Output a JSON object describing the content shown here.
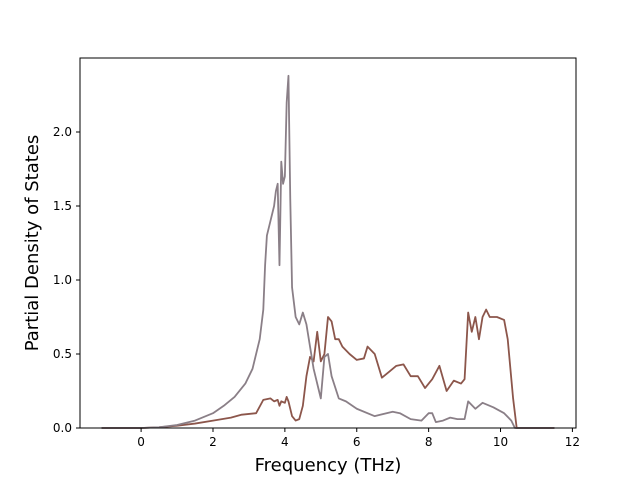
{
  "chart_data": {
    "type": "line",
    "title": "",
    "xlabel": "Frequency (THz)",
    "ylabel": "Partial Density of States",
    "xlim": [
      -1.7,
      12.1
    ],
    "ylim": [
      0,
      2.5
    ],
    "xticks": [
      0,
      2,
      4,
      6,
      8,
      10,
      12
    ],
    "xtick_labels": [
      "0",
      "2",
      "4",
      "6",
      "8",
      "10",
      "12"
    ],
    "yticks": [
      0,
      0.5,
      1.0,
      1.5,
      2.0
    ],
    "ytick_labels": [
      "0.0",
      "0.5",
      "1.0",
      "1.5",
      "2.0"
    ],
    "grid": false,
    "legend": "none",
    "series": [
      {
        "color": "#8c564b",
        "x": [
          -1.1,
          0.0,
          0.5,
          1.0,
          1.5,
          2.0,
          2.5,
          2.8,
          3.2,
          3.4,
          3.6,
          3.7,
          3.8,
          3.85,
          3.9,
          4.0,
          4.05,
          4.1,
          4.2,
          4.3,
          4.4,
          4.5,
          4.6,
          4.7,
          4.8,
          4.9,
          5.0,
          5.1,
          5.2,
          5.3,
          5.4,
          5.5,
          5.6,
          5.8,
          6.0,
          6.2,
          6.3,
          6.5,
          6.7,
          6.9,
          7.1,
          7.3,
          7.5,
          7.7,
          7.9,
          8.1,
          8.3,
          8.5,
          8.7,
          8.9,
          9.0,
          9.1,
          9.2,
          9.3,
          9.4,
          9.5,
          9.6,
          9.7,
          9.9,
          10.1,
          10.2,
          10.35,
          10.45,
          11.5
        ],
        "y": [
          0.0,
          0.0,
          0.005,
          0.015,
          0.03,
          0.05,
          0.07,
          0.09,
          0.1,
          0.19,
          0.2,
          0.18,
          0.19,
          0.15,
          0.18,
          0.17,
          0.21,
          0.18,
          0.08,
          0.05,
          0.06,
          0.15,
          0.35,
          0.48,
          0.45,
          0.65,
          0.45,
          0.5,
          0.75,
          0.72,
          0.6,
          0.6,
          0.55,
          0.5,
          0.46,
          0.47,
          0.55,
          0.5,
          0.34,
          0.38,
          0.42,
          0.43,
          0.35,
          0.35,
          0.27,
          0.33,
          0.42,
          0.25,
          0.32,
          0.3,
          0.33,
          0.78,
          0.65,
          0.75,
          0.6,
          0.75,
          0.8,
          0.75,
          0.75,
          0.73,
          0.6,
          0.2,
          0.0,
          0.0
        ]
      },
      {
        "color": "#8a7f87",
        "x": [
          -1.1,
          0.0,
          0.5,
          1.0,
          1.5,
          2.0,
          2.3,
          2.6,
          2.9,
          3.1,
          3.3,
          3.4,
          3.45,
          3.5,
          3.6,
          3.7,
          3.75,
          3.8,
          3.85,
          3.9,
          3.95,
          4.0,
          4.05,
          4.1,
          4.15,
          4.2,
          4.3,
          4.4,
          4.5,
          4.6,
          4.7,
          4.8,
          4.9,
          5.0,
          5.1,
          5.2,
          5.3,
          5.5,
          5.7,
          6.0,
          6.5,
          7.0,
          7.2,
          7.5,
          7.8,
          8.0,
          8.1,
          8.2,
          8.4,
          8.6,
          8.8,
          9.0,
          9.1,
          9.3,
          9.5,
          9.8,
          10.1,
          10.3,
          10.4,
          11.5
        ],
        "y": [
          0.0,
          0.0,
          0.005,
          0.02,
          0.05,
          0.1,
          0.15,
          0.21,
          0.3,
          0.4,
          0.6,
          0.8,
          1.1,
          1.3,
          1.4,
          1.5,
          1.6,
          1.65,
          1.1,
          1.8,
          1.65,
          1.7,
          2.2,
          2.38,
          1.55,
          0.95,
          0.75,
          0.7,
          0.78,
          0.7,
          0.55,
          0.4,
          0.3,
          0.2,
          0.48,
          0.5,
          0.35,
          0.2,
          0.18,
          0.13,
          0.08,
          0.11,
          0.1,
          0.06,
          0.05,
          0.1,
          0.1,
          0.04,
          0.05,
          0.07,
          0.06,
          0.06,
          0.18,
          0.13,
          0.17,
          0.14,
          0.1,
          0.05,
          0.0,
          0.0
        ]
      }
    ]
  }
}
